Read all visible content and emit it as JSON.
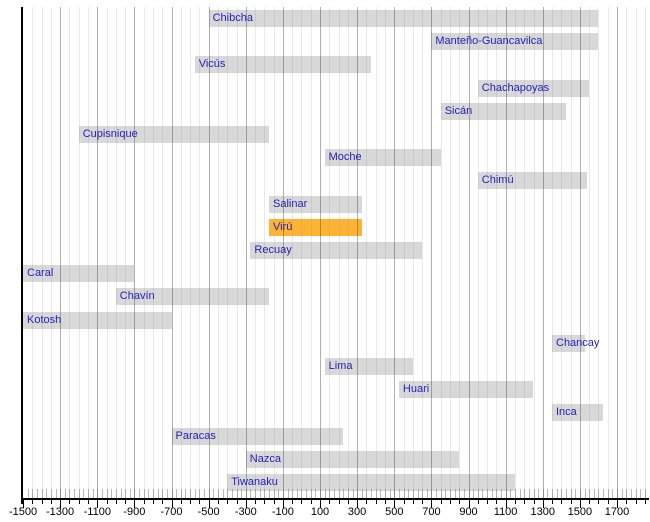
{
  "chart_data": {
    "type": "bar",
    "variant": "horizontal-timeline-gantt",
    "title": "",
    "xlabel": "",
    "ylabel": "",
    "axis": {
      "min": -1500,
      "max": 1700,
      "major_step": 200,
      "minor_step": 50,
      "comb_step": 25,
      "grid": true,
      "tick_labels": [
        "-1500",
        "-1300",
        "-1100",
        "-900",
        "-700",
        "-500",
        "-300",
        "-100",
        "100",
        "300",
        "500",
        "700",
        "900",
        "1100",
        "1300",
        "1500",
        "1700"
      ],
      "tick_years": [
        -1500,
        -1300,
        -1100,
        -900,
        -700,
        -500,
        -300,
        -100,
        100,
        300,
        500,
        700,
        900,
        1100,
        1300,
        1500,
        1700
      ]
    },
    "colors": {
      "bar": "#d8d8d8",
      "highlight": "#ffb333",
      "label": "#2222bb",
      "axis": "#000000",
      "grid_minor": "#e9e9e9",
      "grid_major": "#b3b3b3"
    },
    "bars": [
      {
        "label": "Chibcha",
        "start": -500,
        "end": 1600,
        "highlight": false
      },
      {
        "label": "Manteño-Guancavilca",
        "start": 700,
        "end": 1600,
        "highlight": false
      },
      {
        "label": "Vicús",
        "start": -575,
        "end": 375,
        "highlight": false
      },
      {
        "label": "Chachapoyas",
        "start": 950,
        "end": 1550,
        "highlight": false
      },
      {
        "label": "Sicán",
        "start": 750,
        "end": 1425,
        "highlight": false
      },
      {
        "label": "Cupisnique",
        "start": -1200,
        "end": -175,
        "highlight": false
      },
      {
        "label": "Moche",
        "start": 125,
        "end": 750,
        "highlight": false
      },
      {
        "label": "Chimú",
        "start": 950,
        "end": 1540,
        "highlight": false
      },
      {
        "label": "Salinar",
        "start": -175,
        "end": 325,
        "highlight": false
      },
      {
        "label": "Virú",
        "start": -175,
        "end": 325,
        "highlight": true
      },
      {
        "label": "Recuay",
        "start": -275,
        "end": 650,
        "highlight": false
      },
      {
        "label": "Caral",
        "start": -1500,
        "end": -900,
        "highlight": false
      },
      {
        "label": "Chavín",
        "start": -1000,
        "end": -175,
        "highlight": false
      },
      {
        "label": "Kotosh",
        "start": -1500,
        "end": -700,
        "highlight": false
      },
      {
        "label": "Chancay",
        "start": 1350,
        "end": 1525,
        "highlight": false
      },
      {
        "label": "Lima",
        "start": 125,
        "end": 600,
        "highlight": false
      },
      {
        "label": "Huari",
        "start": 525,
        "end": 1250,
        "highlight": false
      },
      {
        "label": "Inca",
        "start": 1350,
        "end": 1625,
        "highlight": false
      },
      {
        "label": "Paracas",
        "start": -700,
        "end": 225,
        "highlight": false
      },
      {
        "label": "Nazca",
        "start": -300,
        "end": 850,
        "highlight": false
      },
      {
        "label": "Tiwanaku",
        "start": -400,
        "end": 1150,
        "highlight": false
      }
    ]
  }
}
